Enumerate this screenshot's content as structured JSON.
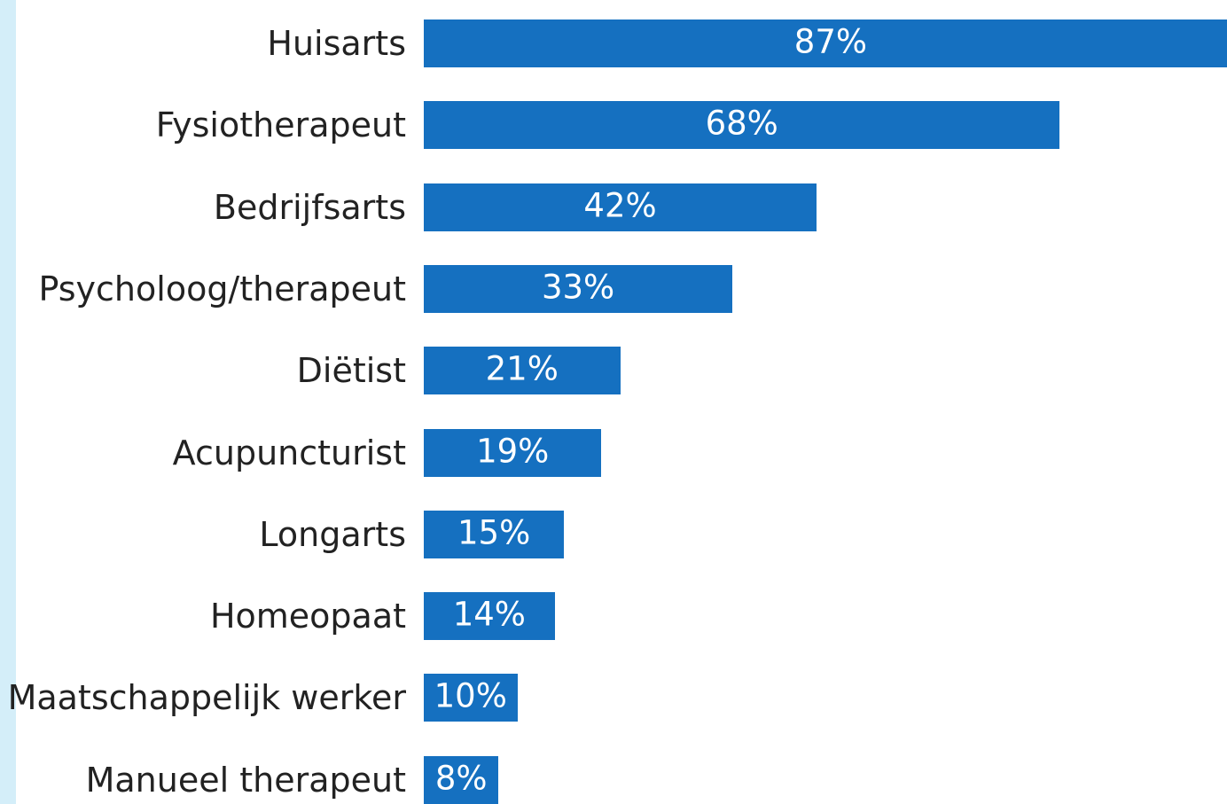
{
  "chart_data": {
    "type": "bar",
    "orientation": "horizontal",
    "categories": [
      "Huisarts",
      "Fysiotherapeut",
      "Bedrijfsarts",
      "Psycholoog/therapeut",
      "Diëtist",
      "Acupuncturist",
      "Longarts",
      "Homeopaat",
      "Maatschappelijk werker",
      "Manueel therapeut"
    ],
    "values": [
      87,
      68,
      42,
      33,
      21,
      19,
      15,
      14,
      10,
      8
    ],
    "value_labels": [
      "87%",
      "68%",
      "42%",
      "33%",
      "21%",
      "19%",
      "15%",
      "14%",
      "10%",
      "8%"
    ],
    "color": "#1570c0"
  }
}
